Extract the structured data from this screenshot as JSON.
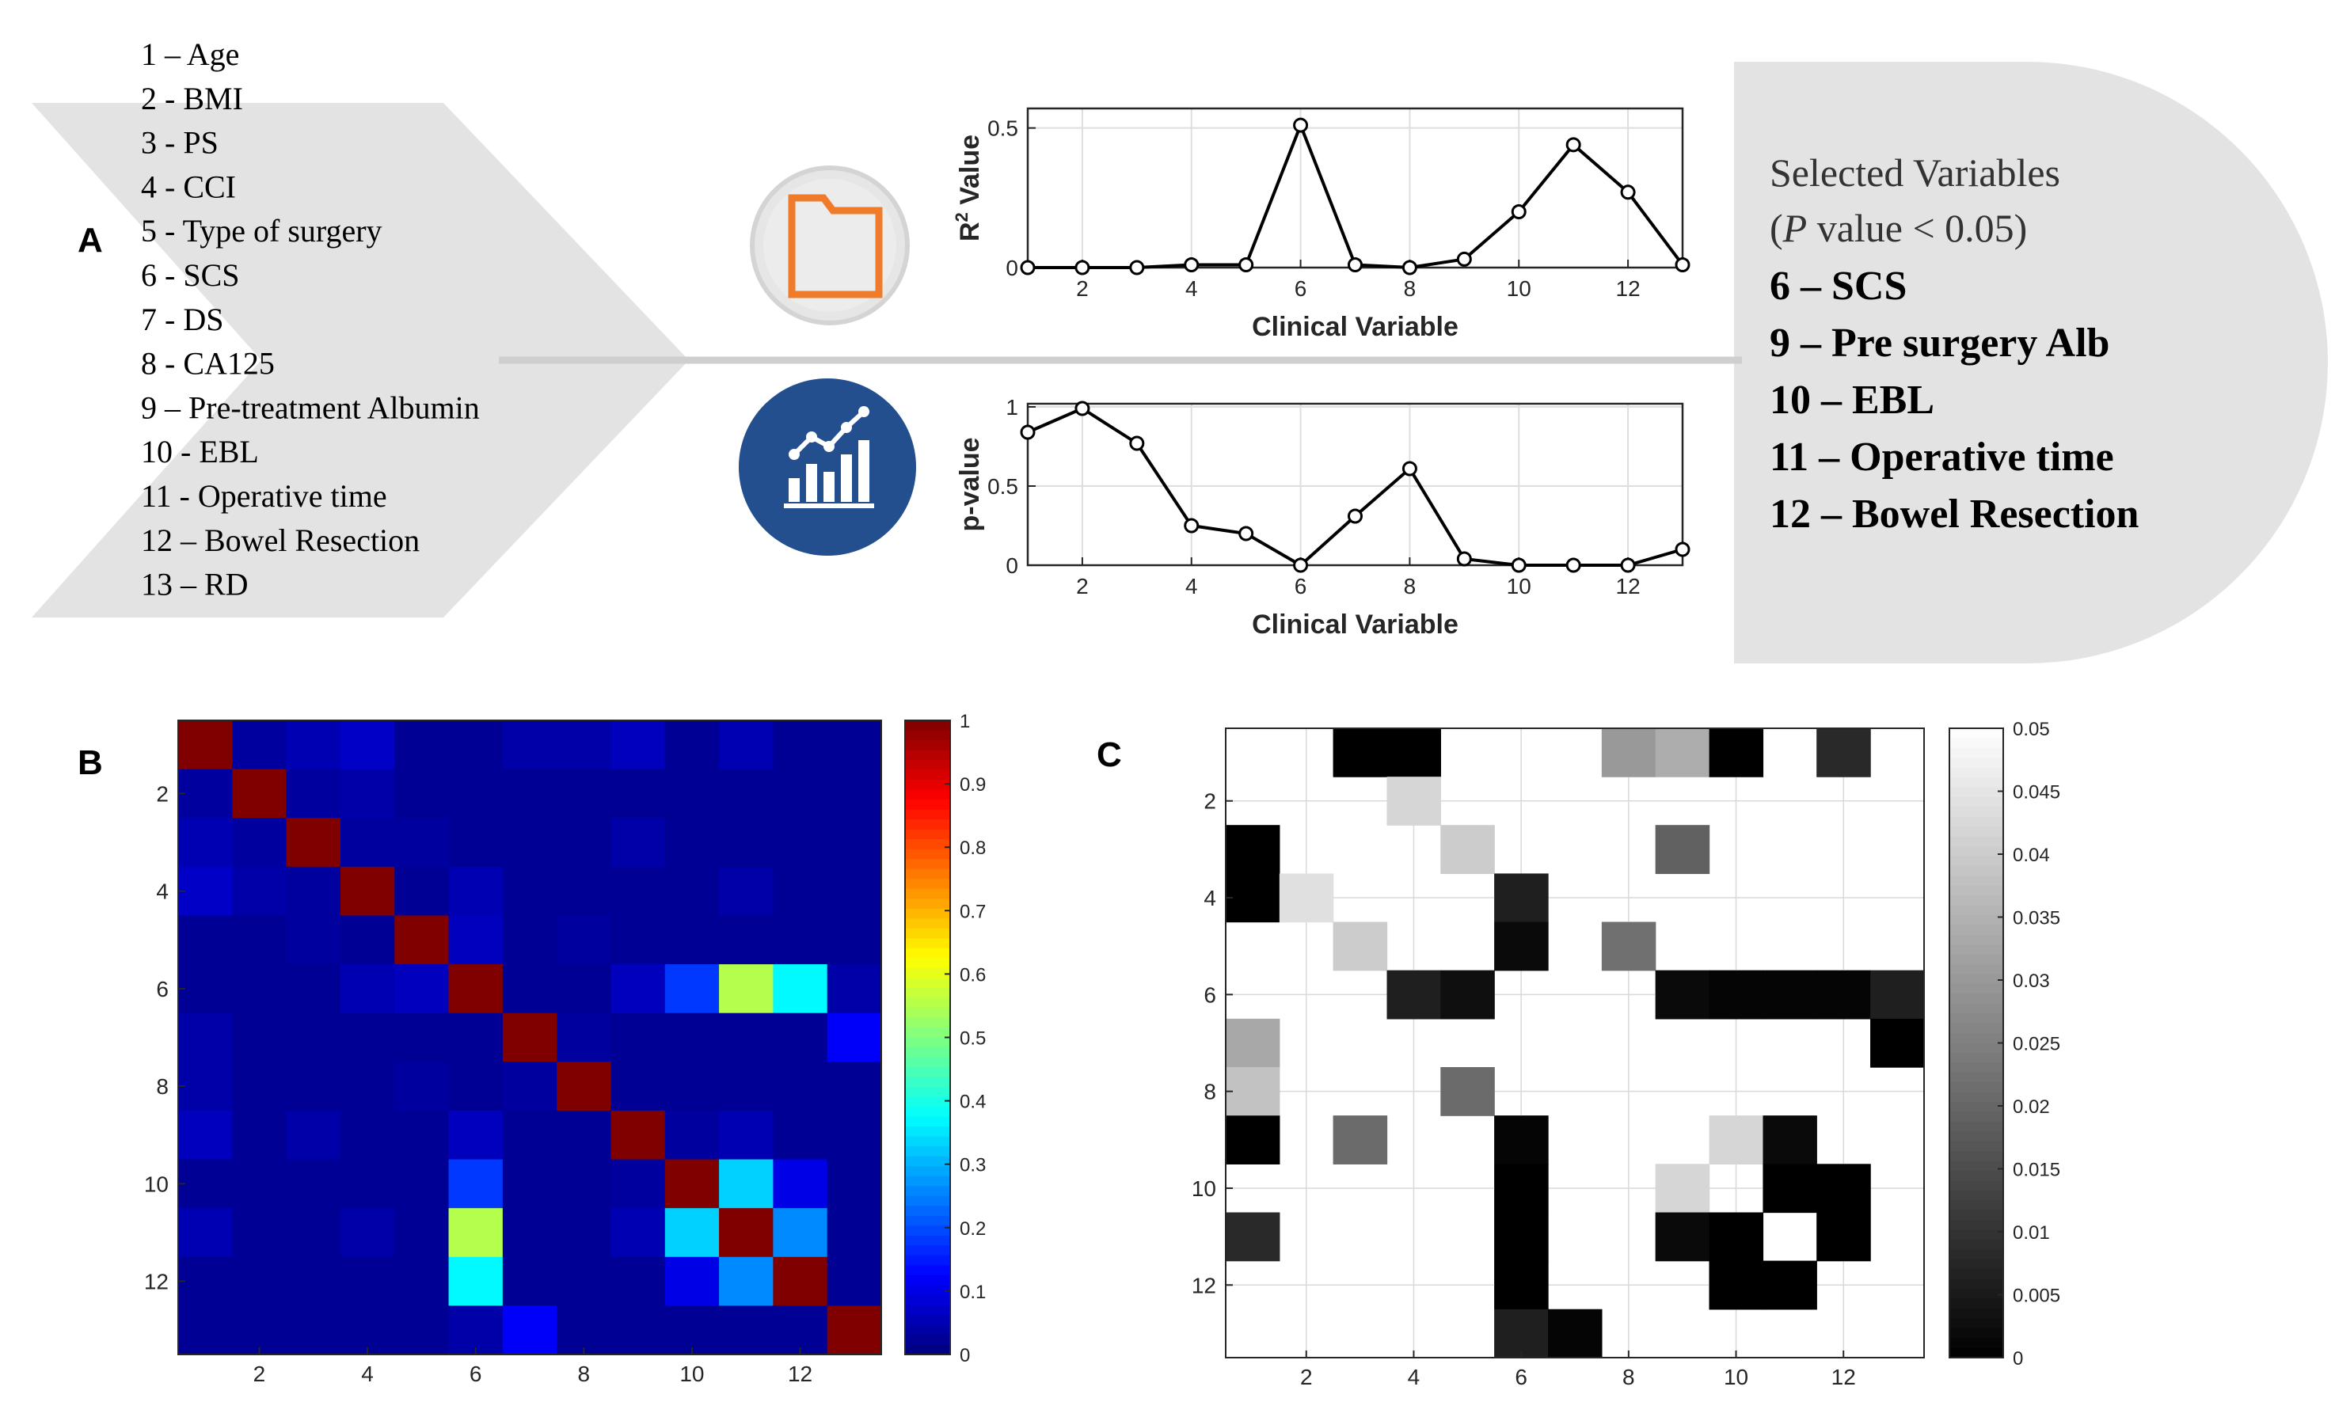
{
  "panel_labels": {
    "a": "A",
    "b": "B",
    "c": "C"
  },
  "variables": [
    "1 – Age",
    "2 - BMI",
    "3 - PS",
    "4 - CCI",
    "5 - Type of surgery",
    "6 - SCS",
    "7 - DS",
    "8 - CA125",
    "9 – Pre-treatment Albumin",
    "10 - EBL",
    "11 - Operative time",
    "12 – Bowel Resection",
    "13 – RD"
  ],
  "selected": {
    "title": "Selected Variables",
    "subtitle_open": "(",
    "subtitle_p": "P",
    "subtitle_rest": " value < 0.05)",
    "items": [
      "6 – SCS",
      "9 – Pre surgery Alb",
      "10 – EBL",
      "11 – Operative time",
      "12 – Bowel Resection"
    ]
  },
  "icons": {
    "top": "folder-icon",
    "bottom": "bar-chart-icon"
  },
  "colors": {
    "arrow_fill": "#e3e3e3",
    "folder_orange": "#f07b2a",
    "chart_icon_bg": "#234f8e",
    "line": "#000000"
  },
  "chart_data": [
    {
      "type": "line",
      "x": [
        1,
        2,
        3,
        4,
        5,
        6,
        7,
        8,
        9,
        10,
        11,
        12,
        13
      ],
      "values": [
        0.0,
        0.0,
        0.0,
        0.01,
        0.01,
        0.51,
        0.01,
        0.0,
        0.03,
        0.2,
        0.44,
        0.27,
        0.01
      ],
      "xlabel": "Clinical Variable",
      "ylabel_base": "R",
      "ylabel_sup": "2",
      "ylabel_rest": " Value",
      "xlim": [
        1,
        13
      ],
      "ylim": [
        0,
        0.57
      ],
      "xticks": [
        2,
        4,
        6,
        8,
        10,
        12
      ],
      "yticks": [
        0,
        0.5
      ],
      "xtick_labels": [
        "2",
        "4",
        "6",
        "8",
        "10",
        "12"
      ],
      "ytick_labels": [
        "0",
        "0.5"
      ],
      "grid": true
    },
    {
      "type": "line",
      "x": [
        1,
        2,
        3,
        4,
        5,
        6,
        7,
        8,
        9,
        10,
        11,
        12,
        13
      ],
      "values": [
        0.84,
        0.99,
        0.77,
        0.25,
        0.2,
        0.0,
        0.31,
        0.61,
        0.04,
        0.0,
        0.0,
        0.0,
        0.1
      ],
      "xlabel": "Clinical Variable",
      "ylabel": "p-value",
      "xlim": [
        1,
        13
      ],
      "ylim": [
        0,
        1.02
      ],
      "xticks": [
        2,
        4,
        6,
        8,
        10,
        12
      ],
      "yticks": [
        0,
        0.5,
        1
      ],
      "xtick_labels": [
        "2",
        "4",
        "6",
        "8",
        "10",
        "12"
      ],
      "ytick_labels": [
        "0",
        "0.5",
        "1"
      ],
      "grid": true
    },
    {
      "type": "heatmap",
      "colormap": "jet",
      "n": 13,
      "clim": [
        0,
        1
      ],
      "xtick_labels": [
        "2",
        "4",
        "6",
        "8",
        "10",
        "12"
      ],
      "ytick_labels": [
        "2",
        "4",
        "6",
        "8",
        "10",
        "12"
      ],
      "colorbar_ticks": [
        "0",
        "0.1",
        "0.2",
        "0.3",
        "0.4",
        "0.5",
        "0.6",
        "0.7",
        "0.8",
        "0.9",
        "1"
      ],
      "values": [
        [
          1.0,
          0.03,
          0.05,
          0.07,
          0.02,
          0.02,
          0.04,
          0.04,
          0.06,
          0.02,
          0.05,
          0.02,
          0.02
        ],
        [
          0.03,
          1.0,
          0.03,
          0.04,
          0.02,
          0.02,
          0.02,
          0.02,
          0.02,
          0.02,
          0.02,
          0.02,
          0.02
        ],
        [
          0.05,
          0.03,
          1.0,
          0.03,
          0.03,
          0.02,
          0.02,
          0.02,
          0.04,
          0.02,
          0.02,
          0.02,
          0.02
        ],
        [
          0.07,
          0.04,
          0.03,
          1.0,
          0.02,
          0.05,
          0.02,
          0.02,
          0.02,
          0.02,
          0.04,
          0.02,
          0.02
        ],
        [
          0.02,
          0.02,
          0.03,
          0.02,
          1.0,
          0.06,
          0.02,
          0.03,
          0.02,
          0.02,
          0.02,
          0.02,
          0.02
        ],
        [
          0.02,
          0.02,
          0.02,
          0.05,
          0.06,
          1.0,
          0.02,
          0.02,
          0.06,
          0.18,
          0.55,
          0.37,
          0.04
        ],
        [
          0.04,
          0.02,
          0.02,
          0.02,
          0.02,
          0.02,
          1.0,
          0.03,
          0.02,
          0.02,
          0.02,
          0.02,
          0.12
        ],
        [
          0.04,
          0.02,
          0.02,
          0.02,
          0.03,
          0.02,
          0.03,
          1.0,
          0.02,
          0.02,
          0.02,
          0.02,
          0.02
        ],
        [
          0.06,
          0.02,
          0.04,
          0.02,
          0.02,
          0.06,
          0.02,
          0.02,
          1.0,
          0.03,
          0.05,
          0.02,
          0.02
        ],
        [
          0.02,
          0.02,
          0.02,
          0.02,
          0.02,
          0.18,
          0.02,
          0.02,
          0.03,
          1.0,
          0.33,
          0.1,
          0.02
        ],
        [
          0.05,
          0.02,
          0.02,
          0.04,
          0.02,
          0.55,
          0.02,
          0.02,
          0.05,
          0.33,
          1.0,
          0.26,
          0.02
        ],
        [
          0.02,
          0.02,
          0.02,
          0.02,
          0.02,
          0.37,
          0.02,
          0.02,
          0.02,
          0.1,
          0.26,
          1.0,
          0.02
        ],
        [
          0.02,
          0.02,
          0.02,
          0.02,
          0.02,
          0.04,
          0.12,
          0.02,
          0.02,
          0.02,
          0.02,
          0.02,
          1.0
        ]
      ]
    },
    {
      "type": "heatmap",
      "colormap": "gray",
      "n": 13,
      "clim": [
        0,
        0.05
      ],
      "xtick_labels": [
        "2",
        "4",
        "6",
        "8",
        "10",
        "12"
      ],
      "ytick_labels": [
        "2",
        "4",
        "6",
        "8",
        "10",
        "12"
      ],
      "colorbar_ticks": [
        "0",
        "0.005",
        "0.01",
        "0.015",
        "0.02",
        "0.025",
        "0.03",
        "0.035",
        "0.04",
        "0.045",
        "0.05"
      ],
      "values": [
        [
          0.05,
          0.05,
          0.0,
          0.0,
          0.05,
          0.05,
          0.05,
          0.03,
          0.034,
          0.0,
          0.05,
          0.008,
          0.05
        ],
        [
          0.05,
          0.05,
          0.05,
          0.042,
          0.05,
          0.05,
          0.05,
          0.05,
          0.05,
          0.05,
          0.05,
          0.05,
          0.05
        ],
        [
          0.0,
          0.05,
          0.05,
          0.05,
          0.04,
          0.05,
          0.05,
          0.05,
          0.019,
          0.05,
          0.05,
          0.05,
          0.05
        ],
        [
          0.0,
          0.044,
          0.05,
          0.05,
          0.05,
          0.006,
          0.05,
          0.05,
          0.05,
          0.05,
          0.05,
          0.05,
          0.05
        ],
        [
          0.05,
          0.05,
          0.04,
          0.05,
          0.05,
          0.002,
          0.05,
          0.022,
          0.05,
          0.05,
          0.05,
          0.05,
          0.05
        ],
        [
          0.05,
          0.05,
          0.05,
          0.006,
          0.003,
          0.05,
          0.05,
          0.05,
          0.002,
          0.001,
          0.001,
          0.001,
          0.006
        ],
        [
          0.033,
          0.05,
          0.05,
          0.05,
          0.05,
          0.05,
          0.05,
          0.05,
          0.05,
          0.05,
          0.05,
          0.05,
          0.0
        ],
        [
          0.038,
          0.05,
          0.05,
          0.05,
          0.021,
          0.05,
          0.05,
          0.05,
          0.05,
          0.05,
          0.05,
          0.05,
          0.05
        ],
        [
          0.0,
          0.05,
          0.021,
          0.05,
          0.05,
          0.001,
          0.05,
          0.05,
          0.05,
          0.042,
          0.002,
          0.05,
          0.05
        ],
        [
          0.05,
          0.05,
          0.05,
          0.05,
          0.05,
          0.0,
          0.05,
          0.05,
          0.042,
          0.05,
          0.0,
          0.0,
          0.05
        ],
        [
          0.008,
          0.05,
          0.05,
          0.05,
          0.05,
          0.0,
          0.05,
          0.05,
          0.002,
          0.0,
          0.05,
          0.0,
          0.05
        ],
        [
          0.05,
          0.05,
          0.05,
          0.05,
          0.05,
          0.0,
          0.05,
          0.05,
          0.05,
          0.0,
          0.0,
          0.05,
          0.05
        ],
        [
          0.05,
          0.05,
          0.05,
          0.05,
          0.05,
          0.006,
          0.001,
          0.05,
          0.05,
          0.05,
          0.05,
          0.05,
          0.05
        ]
      ]
    }
  ]
}
